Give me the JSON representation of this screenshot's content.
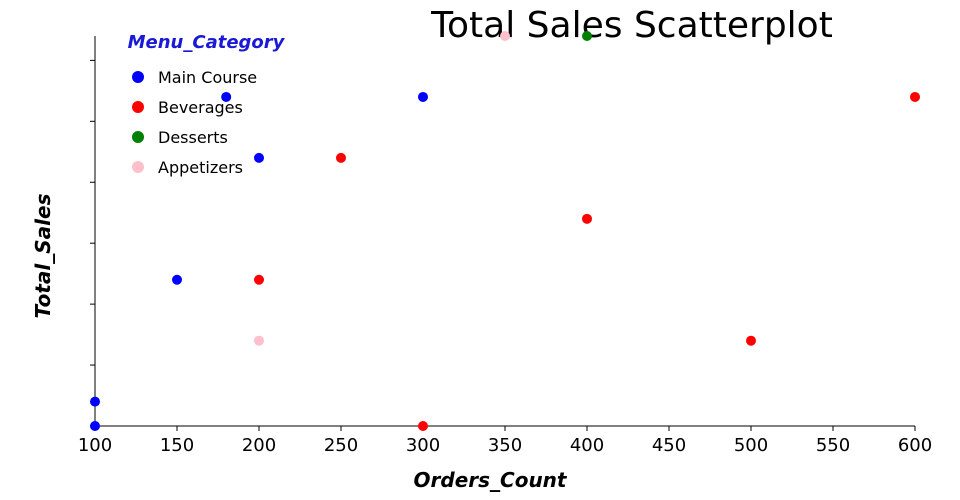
{
  "chart_data": {
    "type": "scatter",
    "title": "Total Sales Scatterplot",
    "xlabel": "Orders_Count",
    "ylabel": "Total_Sales",
    "xlim": [
      100,
      600
    ],
    "ylim": [
      0,
      6.4
    ],
    "x_ticks": [
      100,
      150,
      200,
      250,
      300,
      350,
      400,
      450,
      500,
      550,
      600
    ],
    "y_ticks": [
      0,
      1,
      2,
      3,
      4,
      5,
      6
    ],
    "show_y_tick_labels": false,
    "grid": false,
    "legend": {
      "title": "Menu_Category",
      "title_color": "#1a1ad6",
      "position": "top-left"
    },
    "series": [
      {
        "name": "Main Course",
        "color": "#0000ff",
        "points": [
          [
            100,
            0
          ],
          [
            100,
            0.4
          ],
          [
            150,
            2.4
          ],
          [
            180,
            5.4
          ],
          [
            200,
            4.4
          ],
          [
            300,
            5.4
          ]
        ]
      },
      {
        "name": "Beverages",
        "color": "#ff0000",
        "points": [
          [
            200,
            2.4
          ],
          [
            250,
            4.4
          ],
          [
            300,
            0
          ],
          [
            400,
            3.4
          ],
          [
            500,
            1.4
          ],
          [
            600,
            5.4
          ]
        ]
      },
      {
        "name": "Desserts",
        "color": "#008000",
        "points": [
          [
            400,
            6.4
          ]
        ]
      },
      {
        "name": "Appetizers",
        "color": "#ffc0cb",
        "points": [
          [
            200,
            1.4
          ],
          [
            350,
            6.4
          ]
        ]
      }
    ]
  }
}
